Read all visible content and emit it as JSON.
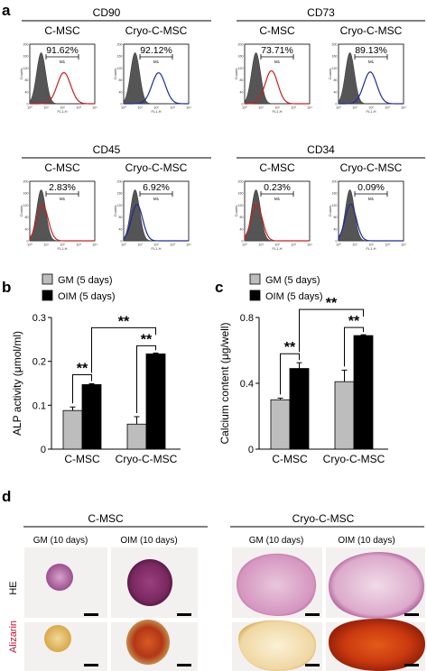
{
  "panel_letters": [
    "a",
    "b",
    "c",
    "d"
  ],
  "flow": {
    "axis_ticks": [
      "10⁰",
      "10¹",
      "10²",
      "10³",
      "10⁴"
    ],
    "y_ticks": [
      "0",
      "40",
      "80",
      "120",
      "160",
      "200"
    ],
    "xlabel": "FL1-H",
    "ylabel": "Counts",
    "gate_label": "M1",
    "colors": {
      "control": "#555555",
      "c_msc": "#cc1f1f",
      "cryo": "#1f2a9c"
    },
    "markers": [
      {
        "marker": "CD90",
        "panels": [
          {
            "group": "C-MSC",
            "percent": "91.62%",
            "shift": 1.4
          },
          {
            "group": "Cryo-C-MSC",
            "percent": "92.12%",
            "shift": 1.45
          }
        ]
      },
      {
        "marker": "CD73",
        "panels": [
          {
            "group": "C-MSC",
            "percent": "73.71%",
            "shift": 0.95
          },
          {
            "group": "Cryo-C-MSC",
            "percent": "89.13%",
            "shift": 1.25
          }
        ]
      },
      {
        "marker": "CD45",
        "panels": [
          {
            "group": "C-MSC",
            "percent": "2.83%",
            "shift": 0.08
          },
          {
            "group": "Cryo-C-MSC",
            "percent": "6.92%",
            "shift": 0.12
          }
        ]
      },
      {
        "marker": "CD34",
        "panels": [
          {
            "group": "C-MSC",
            "percent": "0.23%",
            "shift": 0.04
          },
          {
            "group": "Cryo-C-MSC",
            "percent": "0.09%",
            "shift": 0.05
          }
        ]
      }
    ]
  },
  "legend": {
    "gm": "GM  (5 days)",
    "oim": "OIM (5 days)"
  },
  "chart_data": [
    {
      "type": "bar",
      "panel": "b",
      "categories": [
        "C-MSC",
        "Cryo-C-MSC"
      ],
      "series": [
        {
          "name": "GM  (5 days)",
          "color": "#bdbdbd",
          "values": [
            0.088,
            0.057
          ],
          "errors": [
            0.008,
            0.017
          ]
        },
        {
          "name": "OIM (5 days)",
          "color": "#000000",
          "values": [
            0.147,
            0.217
          ],
          "errors": [
            0.002,
            0.002
          ]
        }
      ],
      "ylabel": "ALP activity (μmol/ml)",
      "ylim": [
        0,
        0.3
      ],
      "yticks": [
        "0",
        "0.1",
        "0.2",
        "0.3"
      ],
      "significance": [
        "**",
        "**",
        "**"
      ]
    },
    {
      "type": "bar",
      "panel": "c",
      "categories": [
        "C-MSC",
        "Cryo-C-MSC"
      ],
      "series": [
        {
          "name": "GM  (5 days)",
          "color": "#bdbdbd",
          "values": [
            0.3,
            0.41
          ],
          "errors": [
            0.01,
            0.07
          ]
        },
        {
          "name": "OIM (5 days)",
          "color": "#000000",
          "values": [
            0.49,
            0.69
          ],
          "errors": [
            0.035,
            0.005
          ]
        }
      ],
      "ylabel": "Calcium content (μg/well)",
      "ylim": [
        0,
        0.8
      ],
      "yticks": [
        "0",
        "0.4",
        "0.8"
      ],
      "significance": [
        "**",
        "**",
        "**"
      ]
    }
  ],
  "histology": {
    "groups": [
      "C-MSC",
      "Cryo-C-MSC"
    ],
    "columns": [
      "GM (10 days)",
      "OIM (10 days)",
      "GM (10 days)",
      "OIM (10 days)"
    ],
    "rows": [
      "HE",
      "Alizarin"
    ],
    "row_colors": {
      "HE": "#000000",
      "Alizarin": "#c8102e"
    }
  }
}
